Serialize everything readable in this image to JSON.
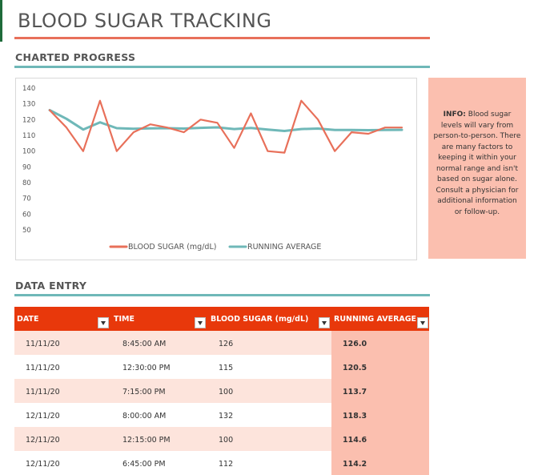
{
  "title": "BLOOD SUGAR TRACKING",
  "sections": {
    "charted_progress": "CHARTED PROGRESS",
    "data_entry": "DATA ENTRY"
  },
  "info": {
    "label": "INFO:",
    "text": "Blood sugar levels will vary from person-to-person.  There are many factors to keeping it within your normal range and isn't based on sugar alone.  Consult a physician for additional information or follow-up."
  },
  "colors": {
    "blood_sugar_line": "#e8705a",
    "running_average_line": "#6fb8b8",
    "header_bg": "#e8380b",
    "info_bg": "#fbbfaf"
  },
  "table": {
    "columns": [
      "DATE",
      "TIME",
      "BLOOD SUGAR (mg/dL)",
      "RUNNING AVERAGE"
    ],
    "rows": [
      {
        "date": "11/11/20",
        "time": "8:45:00 AM",
        "sugar": "126",
        "avg": "126.0"
      },
      {
        "date": "11/11/20",
        "time": "12:30:00 PM",
        "sugar": "115",
        "avg": "120.5"
      },
      {
        "date": "11/11/20",
        "time": "7:15:00 PM",
        "sugar": "100",
        "avg": "113.7"
      },
      {
        "date": "12/11/20",
        "time": "8:00:00 AM",
        "sugar": "132",
        "avg": "118.3"
      },
      {
        "date": "12/11/20",
        "time": "12:15:00 PM",
        "sugar": "100",
        "avg": "114.6"
      },
      {
        "date": "12/11/20",
        "time": "6:45:00 PM",
        "sugar": "112",
        "avg": "114.2"
      }
    ]
  },
  "chart_data": {
    "type": "line",
    "yticks": [
      "140",
      "130",
      "120",
      "110",
      "100",
      "90",
      "80",
      "70",
      "60",
      "50"
    ],
    "ylim": [
      50,
      140
    ],
    "grid": false,
    "legend_position": "bottom",
    "series": [
      {
        "name": "BLOOD SUGAR (mg/dL)",
        "values": [
          126,
          115,
          100,
          132,
          100,
          112,
          117,
          115,
          112,
          120,
          118,
          102,
          124,
          100,
          99,
          132,
          120,
          100,
          112,
          111,
          115,
          115
        ]
      },
      {
        "name": "RUNNING AVERAGE",
        "values": [
          126,
          120.5,
          113.7,
          118.3,
          114.6,
          114.2,
          114.5,
          114.6,
          114.3,
          114.8,
          115.1,
          114.0,
          114.7,
          113.7,
          112.8,
          114.0,
          114.3,
          113.4,
          113.4,
          113.3,
          113.4,
          113.5
        ]
      }
    ]
  }
}
